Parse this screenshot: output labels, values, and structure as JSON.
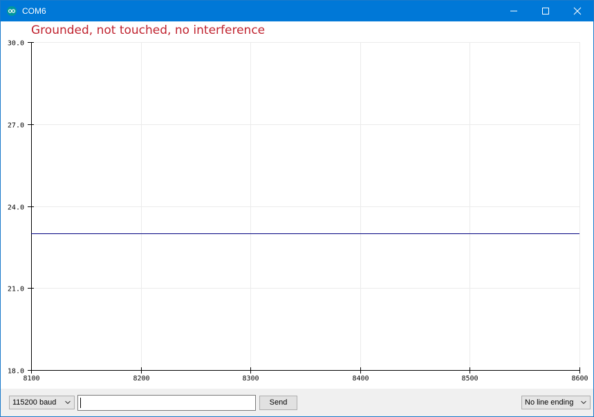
{
  "window": {
    "title": "COM6"
  },
  "plot": {
    "label": "Grounded, not touched, no interference"
  },
  "chart_data": {
    "type": "line",
    "title": "",
    "xlabel": "",
    "ylabel": "",
    "xlim": [
      8100,
      8600
    ],
    "ylim": [
      18.0,
      30.0
    ],
    "x_ticks": [
      "8100",
      "8200",
      "8300",
      "8400",
      "8500",
      "8600"
    ],
    "y_ticks": [
      "18.0",
      "21.0",
      "24.0",
      "27.0",
      "30.0"
    ],
    "grid": true,
    "series": [
      {
        "color": "#000080",
        "x": [
          8100,
          8600
        ],
        "values": [
          23.0,
          23.0
        ]
      }
    ]
  },
  "controls": {
    "baud": "115200 baud",
    "input_value": "",
    "send_label": "Send",
    "line_ending": "No line ending"
  }
}
